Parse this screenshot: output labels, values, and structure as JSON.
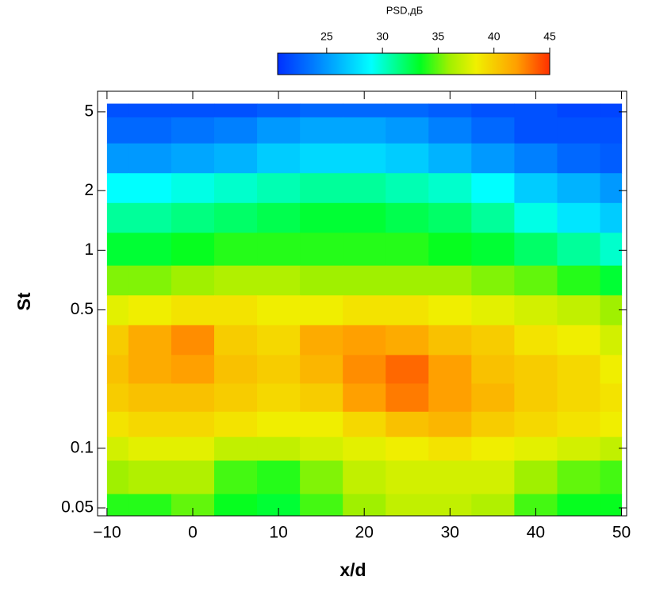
{
  "chart_data": {
    "type": "heatmap",
    "xlabel": "x/d",
    "ylabel": "St",
    "xlim": [
      -11.1,
      50.6
    ],
    "ylim": [
      0.0456,
      6.35
    ],
    "yscale": "log",
    "xticks": [
      {
        "value": -10,
        "label": "−10"
      },
      0,
      10,
      20,
      30,
      40,
      50
    ],
    "yticks": [
      0.05,
      0.1,
      0.5,
      1,
      2,
      5
    ],
    "x": [
      -10,
      -5,
      0,
      5,
      10,
      15,
      20,
      25,
      30,
      35,
      40,
      45,
      50
    ],
    "y": [
      5.5,
      4,
      3,
      2,
      1.5,
      1,
      0.7,
      0.5,
      0.35,
      0.25,
      0.18,
      0.13,
      0.1,
      0.075,
      0.046
    ],
    "values": [
      [
        22,
        22,
        22,
        22,
        22.5,
        23,
        23,
        23,
        22.5,
        22,
        22,
        21.5,
        21.5
      ],
      [
        23,
        23,
        23.5,
        24,
        25,
        25.5,
        25.5,
        25,
        24,
        23,
        22,
        22,
        22
      ],
      [
        25,
        25,
        25.5,
        26,
        27,
        27.5,
        27.5,
        27,
        26,
        25,
        24,
        23,
        22.5
      ],
      [
        29,
        29,
        29.5,
        30,
        30.5,
        31,
        31,
        30.5,
        30,
        29,
        27,
        26,
        25
      ],
      [
        31,
        31,
        31.5,
        32,
        32.5,
        33,
        33,
        32.5,
        32,
        31,
        29.5,
        28,
        27
      ],
      [
        33,
        33,
        33.5,
        34,
        34,
        34,
        34,
        34,
        33.5,
        33,
        32,
        31,
        30
      ],
      [
        35.5,
        35.5,
        36,
        36.5,
        36.5,
        36,
        36,
        36,
        36,
        35.5,
        35,
        34,
        33
      ],
      [
        38,
        38.5,
        39,
        39,
        38.5,
        38.5,
        39,
        39,
        38.5,
        38,
        37.5,
        37,
        36
      ],
      [
        40,
        41.5,
        42.5,
        40,
        39.5,
        41.5,
        42,
        41.5,
        40.5,
        40,
        39,
        38.5,
        37.5
      ],
      [
        40.5,
        41.5,
        42,
        40.5,
        40,
        41,
        42.5,
        43.5,
        42,
        40.5,
        40,
        39.5,
        38.5
      ],
      [
        40,
        40.5,
        40.5,
        40,
        39.5,
        40,
        42,
        43,
        42,
        41,
        40,
        39.5,
        39
      ],
      [
        39,
        39.5,
        39.5,
        39,
        38.5,
        38.5,
        39.5,
        40.5,
        41,
        40,
        39.5,
        39,
        38.5
      ],
      [
        37.5,
        38,
        38,
        37,
        37,
        37.5,
        38,
        38.5,
        39,
        38.5,
        38,
        37.5,
        37
      ],
      [
        36,
        36.5,
        36.5,
        34.5,
        34,
        35.5,
        37,
        37.5,
        37.5,
        37.5,
        36,
        35,
        34.5
      ],
      [
        34,
        34,
        35,
        33.5,
        33,
        34.5,
        36,
        37,
        37,
        36.5,
        34.5,
        33.5,
        33.5
      ]
    ],
    "colorscale": [
      [
        20.6,
        "#0030ff"
      ],
      [
        24,
        "#0080ff"
      ],
      [
        29,
        "#00ffff"
      ],
      [
        33.4,
        "#00ff20"
      ],
      [
        36,
        "#a0f000"
      ],
      [
        38.4,
        "#f0f000"
      ],
      [
        42,
        "#ffa000"
      ],
      [
        45,
        "#ff3000"
      ]
    ],
    "colorbar": {
      "label": "PSD,дБ",
      "lim": [
        20.6,
        45
      ],
      "ticks": [
        25,
        30,
        35,
        40,
        45
      ]
    }
  }
}
